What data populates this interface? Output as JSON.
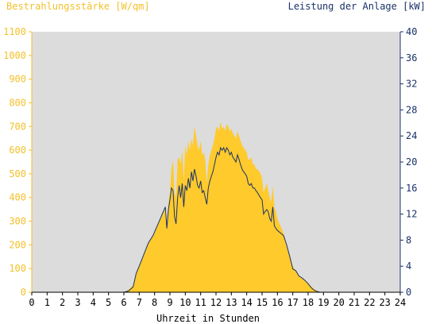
{
  "chart_data": {
    "type": "area",
    "title_left": "Bestrahlungsstärke [W/qm]",
    "title_right": "Leistung der Anlage [kW]",
    "xlabel": "Uhrzeit in Stunden",
    "xlim": [
      0,
      24
    ],
    "x_ticks": [
      "0",
      "1",
      "2",
      "3",
      "4",
      "5",
      "6",
      "7",
      "8",
      "9",
      "10",
      "11",
      "12",
      "13",
      "14",
      "15",
      "16",
      "17",
      "18",
      "19",
      "20",
      "21",
      "22",
      "23",
      "24"
    ],
    "ylim_left": [
      0,
      1100
    ],
    "y_ticks_left": [
      "0",
      "100",
      "200",
      "300",
      "400",
      "500",
      "600",
      "700",
      "800",
      "900",
      "1000",
      "1100"
    ],
    "ylim_right": [
      0,
      40
    ],
    "y_ticks_right": [
      "0",
      "4",
      "8",
      "12",
      "16",
      "20",
      "24",
      "28",
      "32",
      "36",
      "40"
    ],
    "grid": false,
    "background": "#dcdcdc",
    "series": [
      {
        "name": "Bestrahlungsstärke",
        "axis": "left",
        "type": "area",
        "color": "#ffca2c",
        "x": [
          0,
          6.0,
          6.3,
          6.6,
          6.8,
          7.0,
          7.3,
          7.6,
          7.9,
          8.1,
          8.3,
          8.5,
          8.7,
          8.8,
          8.9,
          9.0,
          9.1,
          9.2,
          9.3,
          9.4,
          9.5,
          9.6,
          9.7,
          9.8,
          9.9,
          10.0,
          10.1,
          10.2,
          10.3,
          10.4,
          10.5,
          10.6,
          10.7,
          10.8,
          10.9,
          11.0,
          11.1,
          11.2,
          11.3,
          11.4,
          11.5,
          11.6,
          11.7,
          11.8,
          11.9,
          12.0,
          12.1,
          12.2,
          12.3,
          12.4,
          12.5,
          12.6,
          12.7,
          12.8,
          12.9,
          13.0,
          13.1,
          13.2,
          13.3,
          13.4,
          13.5,
          13.6,
          13.7,
          13.8,
          13.9,
          14.0,
          14.1,
          14.2,
          14.3,
          14.4,
          14.5,
          14.6,
          14.7,
          14.8,
          14.9,
          15.0,
          15.1,
          15.2,
          15.3,
          15.4,
          15.5,
          15.6,
          15.7,
          15.8,
          15.9,
          16.0,
          16.2,
          16.4,
          16.6,
          16.8,
          17.0,
          17.2,
          17.4,
          17.6,
          17.8,
          18.0,
          18.2,
          18.4,
          18.6,
          18.8,
          19.0,
          24
        ],
        "values": [
          0,
          0,
          10,
          30,
          80,
          110,
          160,
          210,
          240,
          270,
          300,
          330,
          360,
          300,
          380,
          420,
          520,
          560,
          420,
          400,
          560,
          570,
          540,
          600,
          470,
          620,
          580,
          640,
          600,
          650,
          620,
          700,
          660,
          620,
          600,
          640,
          580,
          590,
          560,
          460,
          540,
          580,
          600,
          620,
          650,
          690,
          700,
          680,
          720,
          690,
          700,
          680,
          710,
          700,
          680,
          690,
          670,
          660,
          650,
          680,
          660,
          640,
          620,
          610,
          600,
          590,
          560,
          560,
          570,
          540,
          540,
          520,
          520,
          510,
          500,
          480,
          420,
          440,
          460,
          430,
          400,
          380,
          450,
          360,
          340,
          310,
          280,
          250,
          200,
          160,
          110,
          90,
          70,
          60,
          50,
          40,
          25,
          12,
          5,
          2,
          0,
          0
        ]
      },
      {
        "name": "Leistung",
        "axis": "right",
        "type": "line",
        "color": "#1a3268",
        "x": [
          0,
          6.0,
          6.3,
          6.6,
          6.8,
          7.0,
          7.3,
          7.6,
          7.9,
          8.1,
          8.3,
          8.5,
          8.7,
          8.8,
          8.9,
          9.0,
          9.1,
          9.2,
          9.3,
          9.4,
          9.5,
          9.6,
          9.7,
          9.8,
          9.9,
          10.0,
          10.1,
          10.2,
          10.3,
          10.4,
          10.5,
          10.6,
          10.7,
          10.8,
          10.9,
          11.0,
          11.1,
          11.2,
          11.3,
          11.4,
          11.5,
          11.6,
          11.7,
          11.8,
          11.9,
          12.0,
          12.1,
          12.2,
          12.3,
          12.4,
          12.5,
          12.6,
          12.7,
          12.8,
          12.9,
          13.0,
          13.1,
          13.2,
          13.3,
          13.4,
          13.5,
          13.6,
          13.7,
          13.8,
          13.9,
          14.0,
          14.1,
          14.2,
          14.3,
          14.4,
          14.5,
          14.6,
          14.7,
          14.8,
          14.9,
          15.0,
          15.1,
          15.2,
          15.3,
          15.4,
          15.5,
          15.6,
          15.7,
          15.8,
          15.9,
          16.0,
          16.2,
          16.4,
          16.6,
          16.8,
          17.0,
          17.2,
          17.4,
          17.6,
          17.8,
          18.0,
          18.2,
          18.4,
          18.6,
          18.8,
          19.0,
          24
        ],
        "values": [
          0,
          0,
          0.2,
          0.8,
          2.9,
          4.0,
          5.8,
          7.6,
          8.7,
          9.8,
          10.9,
          12.0,
          13.1,
          9.8,
          12.7,
          14.2,
          16.0,
          15.6,
          11.6,
          10.5,
          14.5,
          16.4,
          14.5,
          16.7,
          13.1,
          16.4,
          15.6,
          17.5,
          16.0,
          18.5,
          17.1,
          18.9,
          17.8,
          16.4,
          16.0,
          17.1,
          15.3,
          15.6,
          14.5,
          13.5,
          16.0,
          17.1,
          17.8,
          18.5,
          19.6,
          20.7,
          21.5,
          21.1,
          22.2,
          21.8,
          22.2,
          21.5,
          22.2,
          21.8,
          21.1,
          21.5,
          20.7,
          20.4,
          20.0,
          21.1,
          20.4,
          19.6,
          18.9,
          18.5,
          18.2,
          17.8,
          16.7,
          16.4,
          16.7,
          16.0,
          16.0,
          15.6,
          15.3,
          14.9,
          14.5,
          14.2,
          12.0,
          12.4,
          12.7,
          12.4,
          11.3,
          10.9,
          13.1,
          10.2,
          9.8,
          9.5,
          9.1,
          8.7,
          7.3,
          5.5,
          3.6,
          3.3,
          2.5,
          2.2,
          1.8,
          1.3,
          0.7,
          0.3,
          0.1,
          0,
          0,
          0
        ]
      }
    ]
  }
}
